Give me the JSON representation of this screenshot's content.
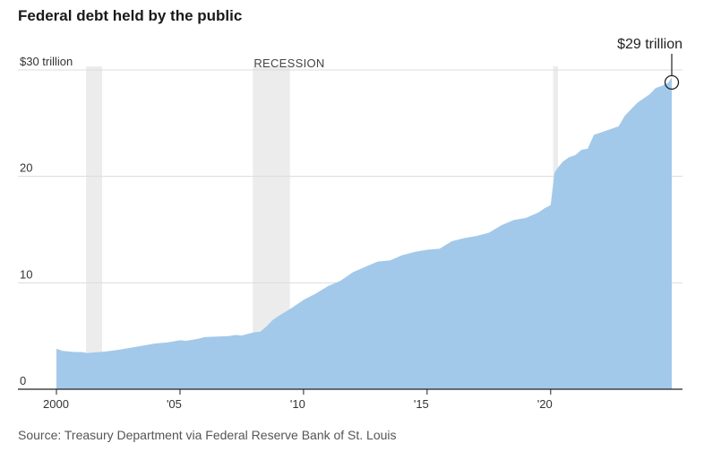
{
  "title": "Federal debt held by the public",
  "source": "Source: Treasury Department via Federal Reserve Bank of St. Louis",
  "chart_data": {
    "type": "area",
    "title": "Federal debt held by the public",
    "xlabel": "",
    "ylabel": "",
    "ylim": [
      0,
      30
    ],
    "xlim": [
      2000,
      2024.9
    ],
    "grid": true,
    "y_ticks": [
      {
        "value": 0,
        "label": "0"
      },
      {
        "value": 10,
        "label": "10"
      },
      {
        "value": 20,
        "label": "20"
      },
      {
        "value": 30,
        "label": "$30 trillion"
      }
    ],
    "x_ticks": [
      {
        "value": 2000,
        "label": "2000"
      },
      {
        "value": 2005,
        "label": "'05"
      },
      {
        "value": 2010,
        "label": "'10"
      },
      {
        "value": 2015,
        "label": "'15"
      },
      {
        "value": 2020,
        "label": "'20"
      }
    ],
    "recessions": [
      {
        "start": 2001.2,
        "end": 2001.85,
        "label": ""
      },
      {
        "start": 2007.95,
        "end": 2009.45,
        "label": "RECESSION"
      },
      {
        "start": 2020.1,
        "end": 2020.3,
        "label": ""
      }
    ],
    "series": [
      {
        "color": "#a3c9ea",
        "x": [
          2000.0,
          2000.25,
          2000.5,
          2000.75,
          2001.0,
          2001.25,
          2001.5,
          2001.75,
          2002.0,
          2002.5,
          2003.0,
          2003.5,
          2004.0,
          2004.5,
          2005.0,
          2005.25,
          2005.5,
          2005.75,
          2006.0,
          2006.5,
          2007.0,
          2007.25,
          2007.5,
          2007.75,
          2008.0,
          2008.25,
          2008.5,
          2008.75,
          2009.0,
          2009.5,
          2010.0,
          2010.5,
          2011.0,
          2011.5,
          2012.0,
          2012.5,
          2013.0,
          2013.5,
          2014.0,
          2014.5,
          2015.0,
          2015.5,
          2016.0,
          2016.5,
          2017.0,
          2017.5,
          2018.0,
          2018.5,
          2019.0,
          2019.5,
          2019.75,
          2020.0,
          2020.15,
          2020.25,
          2020.5,
          2020.75,
          2021.0,
          2021.25,
          2021.5,
          2021.75,
          2022.0,
          2022.25,
          2022.5,
          2022.75,
          2023.0,
          2023.25,
          2023.5,
          2023.75,
          2024.0,
          2024.25,
          2024.5,
          2024.75,
          2024.9
        ],
        "values": [
          3.8,
          3.6,
          3.55,
          3.5,
          3.5,
          3.4,
          3.45,
          3.5,
          3.55,
          3.7,
          3.9,
          4.1,
          4.3,
          4.4,
          4.6,
          4.55,
          4.65,
          4.75,
          4.9,
          4.95,
          5.0,
          5.1,
          5.05,
          5.2,
          5.35,
          5.4,
          5.9,
          6.5,
          6.9,
          7.6,
          8.4,
          9.0,
          9.7,
          10.2,
          11.0,
          11.5,
          12.0,
          12.1,
          12.6,
          12.9,
          13.1,
          13.2,
          13.9,
          14.2,
          14.4,
          14.7,
          15.4,
          15.9,
          16.1,
          16.6,
          17.0,
          17.3,
          20.3,
          20.7,
          21.4,
          21.8,
          22.0,
          22.5,
          22.6,
          23.9,
          24.1,
          24.3,
          24.5,
          24.7,
          25.7,
          26.3,
          26.9,
          27.3,
          27.7,
          28.3,
          28.5,
          28.8,
          29.3
        ]
      }
    ],
    "annotation": {
      "label": "$29 trillion",
      "x": 2024.9,
      "y": 29.0
    }
  }
}
